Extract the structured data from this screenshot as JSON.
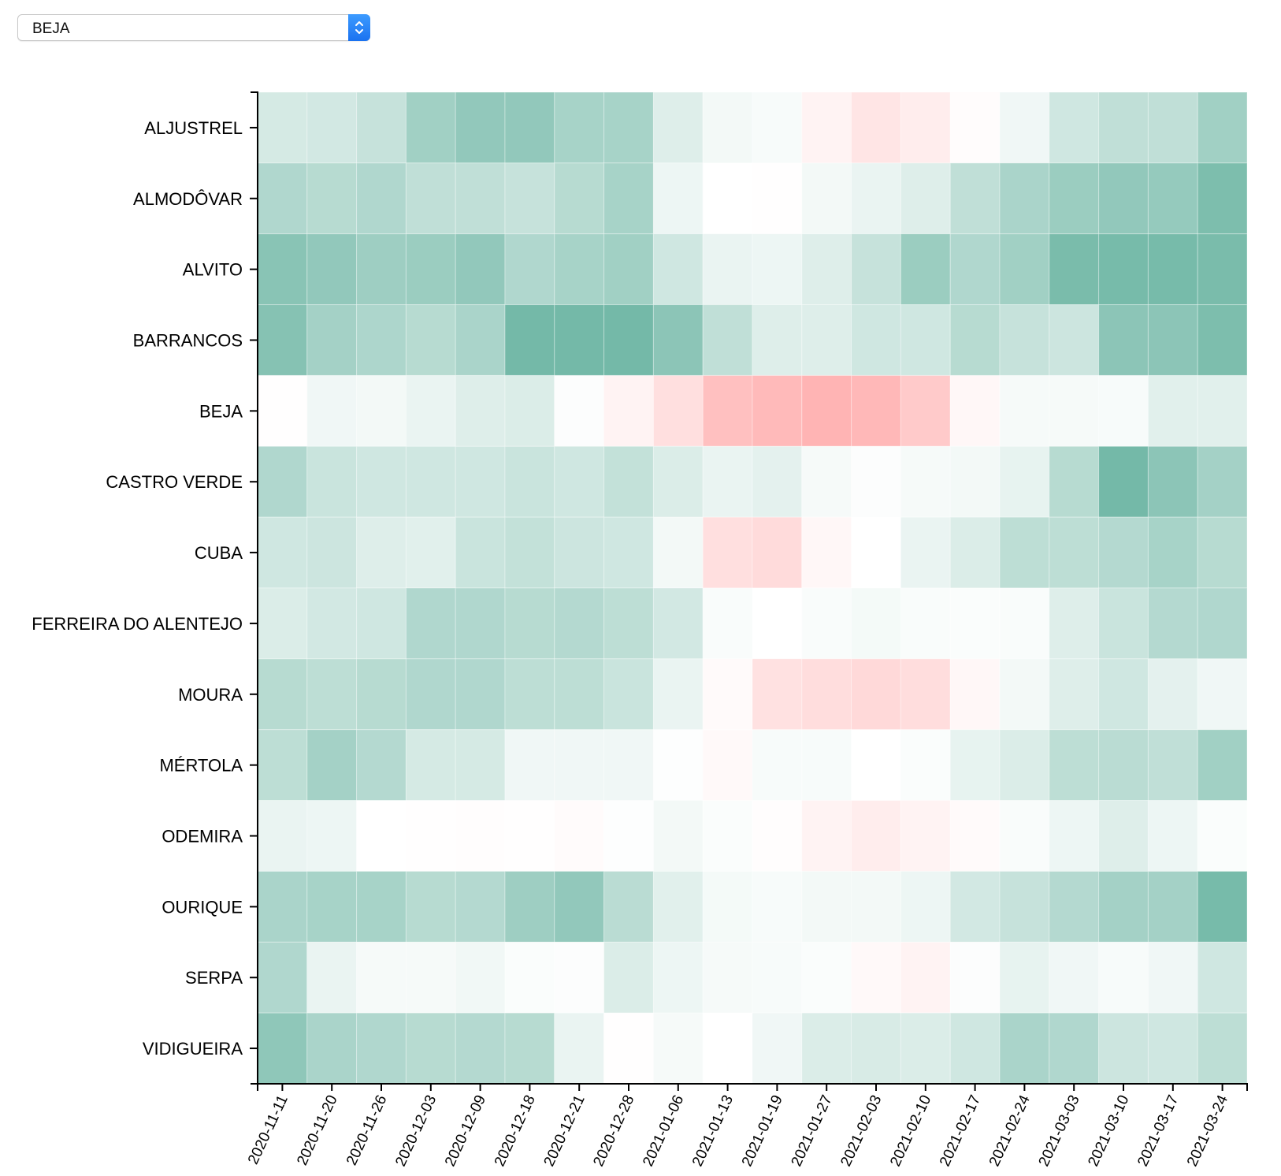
{
  "dropdown": {
    "selected": "BEJA"
  },
  "chart_data": {
    "type": "heatmap",
    "title": "",
    "xlabel": "",
    "ylabel": "",
    "x": [
      "2020-11-11",
      "2020-11-20",
      "2020-11-26",
      "2020-12-03",
      "2020-12-09",
      "2020-12-18",
      "2020-12-21",
      "2020-12-28",
      "2021-01-06",
      "2021-01-13",
      "2021-01-19",
      "2021-01-27",
      "2021-02-03",
      "2021-02-10",
      "2021-02-17",
      "2021-02-24",
      "2021-03-03",
      "2021-03-10",
      "2021-03-17",
      "2021-03-24"
    ],
    "y": [
      "ALJUSTREL",
      "ALMODÔVAR",
      "ALVITO",
      "BARRANCOS",
      "BEJA",
      "CASTRO VERDE",
      "CUBA",
      "FERREIRA DO ALENTEJO",
      "MOURA",
      "MÉRTOLA",
      "ODEMIRA",
      "OURIQUE",
      "SERPA",
      "VIDIGUEIRA"
    ],
    "values": [
      [
        0.28,
        0.3,
        0.38,
        0.62,
        0.72,
        0.72,
        0.58,
        0.58,
        0.22,
        0.08,
        0.05,
        -0.12,
        -0.26,
        -0.18,
        -0.03,
        0.1,
        0.32,
        0.42,
        0.42,
        0.62
      ],
      [
        0.52,
        0.48,
        0.52,
        0.42,
        0.42,
        0.38,
        0.48,
        0.58,
        0.12,
        0.0,
        -0.01,
        0.08,
        0.14,
        0.22,
        0.42,
        0.56,
        0.66,
        0.72,
        0.7,
        0.86
      ],
      [
        0.78,
        0.72,
        0.64,
        0.66,
        0.72,
        0.52,
        0.58,
        0.62,
        0.32,
        0.14,
        0.12,
        0.22,
        0.38,
        0.66,
        0.52,
        0.62,
        0.88,
        0.9,
        0.9,
        0.88
      ],
      [
        0.8,
        0.6,
        0.54,
        0.48,
        0.56,
        0.92,
        0.92,
        0.92,
        0.76,
        0.42,
        0.22,
        0.22,
        0.32,
        0.32,
        0.48,
        0.38,
        0.34,
        0.76,
        0.76,
        0.86
      ],
      [
        -0.01,
        0.1,
        0.08,
        0.14,
        0.22,
        0.24,
        0.02,
        -0.12,
        -0.32,
        -0.62,
        -0.68,
        -0.74,
        -0.7,
        -0.52,
        -0.08,
        0.06,
        0.06,
        0.05,
        0.2,
        0.2
      ],
      [
        0.52,
        0.36,
        0.32,
        0.32,
        0.32,
        0.36,
        0.32,
        0.4,
        0.24,
        0.14,
        0.18,
        0.06,
        0.02,
        0.06,
        0.08,
        0.16,
        0.48,
        0.92,
        0.76,
        0.6
      ],
      [
        0.32,
        0.34,
        0.22,
        0.2,
        0.36,
        0.4,
        0.34,
        0.32,
        0.08,
        -0.32,
        -0.36,
        -0.08,
        0.0,
        0.14,
        0.24,
        0.44,
        0.44,
        0.5,
        0.58,
        0.48
      ],
      [
        0.24,
        0.3,
        0.32,
        0.52,
        0.52,
        0.48,
        0.5,
        0.44,
        0.3,
        0.04,
        0.0,
        0.04,
        0.07,
        0.04,
        0.03,
        0.04,
        0.22,
        0.36,
        0.5,
        0.52
      ],
      [
        0.48,
        0.44,
        0.48,
        0.52,
        0.52,
        0.44,
        0.44,
        0.36,
        0.14,
        -0.05,
        -0.3,
        -0.34,
        -0.38,
        -0.34,
        -0.08,
        0.08,
        0.22,
        0.32,
        0.18,
        0.1
      ],
      [
        0.44,
        0.6,
        0.5,
        0.28,
        0.28,
        0.1,
        0.1,
        0.1,
        0.01,
        -0.06,
        0.05,
        0.05,
        0.0,
        0.03,
        0.16,
        0.24,
        0.44,
        0.46,
        0.42,
        0.62
      ],
      [
        0.14,
        0.12,
        0.0,
        -0.01,
        -0.02,
        -0.01,
        -0.04,
        0.01,
        0.08,
        0.03,
        -0.02,
        -0.12,
        -0.18,
        -0.12,
        -0.05,
        0.04,
        0.12,
        0.22,
        0.12,
        0.03
      ],
      [
        0.56,
        0.58,
        0.58,
        0.48,
        0.5,
        0.64,
        0.72,
        0.46,
        0.2,
        0.07,
        0.05,
        0.08,
        0.08,
        0.12,
        0.3,
        0.38,
        0.5,
        0.6,
        0.6,
        0.9
      ],
      [
        0.52,
        0.14,
        0.06,
        0.06,
        0.09,
        0.03,
        0.02,
        0.24,
        0.12,
        0.06,
        0.05,
        0.03,
        -0.06,
        -0.12,
        0.02,
        0.16,
        0.1,
        0.05,
        0.1,
        0.32
      ],
      [
        0.74,
        0.56,
        0.52,
        0.48,
        0.5,
        0.48,
        0.14,
        -0.01,
        0.06,
        0.0,
        0.1,
        0.24,
        0.26,
        0.24,
        0.32,
        0.56,
        0.52,
        0.34,
        0.32,
        0.44
      ]
    ],
    "color_scale": {
      "negative": "#ff9a9a",
      "zero": "#ffffff",
      "positive": "#68b3a0",
      "domain": [
        -1,
        1
      ]
    },
    "grid": false,
    "legend": "none"
  }
}
